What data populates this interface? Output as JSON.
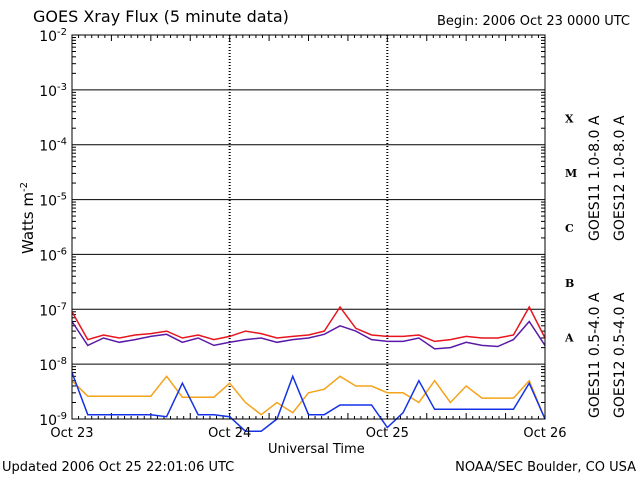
{
  "header": {
    "title": "GOES Xray Flux (5 minute data)",
    "begin": "Begin:  2006 Oct 23 0000 UTC"
  },
  "footer": {
    "updated": "Updated 2006 Oct 25 22:01:06 UTC",
    "credit": "NOAA/SEC Boulder, CO USA"
  },
  "colors": {
    "goes11_long": "#5a1aa8",
    "goes12_long": "#e8141e",
    "goes11_short": "#f5a31a",
    "goes12_short": "#1432e6"
  },
  "chart_data": {
    "type": "line",
    "title": "GOES Xray Flux (5 minute data)",
    "xlabel": "Universal Time",
    "ylabel": "Watts m",
    "ylabel_sup": "-2",
    "yscale": "log",
    "ylim": [
      1e-09,
      0.01
    ],
    "xlim": [
      "Oct 23",
      "Oct 26"
    ],
    "x_ticks": [
      "Oct 23",
      "Oct 24",
      "Oct 25",
      "Oct 26"
    ],
    "y_ticks": [
      {
        "base": "10",
        "exp": "-9"
      },
      {
        "base": "10",
        "exp": "-8"
      },
      {
        "base": "10",
        "exp": "-7"
      },
      {
        "base": "10",
        "exp": "-6"
      },
      {
        "base": "10",
        "exp": "-5"
      },
      {
        "base": "10",
        "exp": "-4"
      },
      {
        "base": "10",
        "exp": "-3"
      },
      {
        "base": "10",
        "exp": "-2"
      }
    ],
    "flare_classes": [
      "A",
      "B",
      "C",
      "M",
      "X"
    ],
    "grid": true,
    "x_days": [
      0,
      0.1,
      0.2,
      0.3,
      0.4,
      0.5,
      0.6,
      0.7,
      0.8,
      0.9,
      1.0,
      1.1,
      1.2,
      1.3,
      1.4,
      1.5,
      1.6,
      1.7,
      1.8,
      1.9,
      2.0,
      2.1,
      2.2,
      2.3,
      2.4,
      2.5,
      2.6,
      2.7,
      2.8,
      2.9,
      3.0
    ],
    "series": [
      {
        "name": "GOES11 1.0-8.0 A",
        "color_key": "goes11_long",
        "values": [
          6e-08,
          2.2e-08,
          3e-08,
          2.5e-08,
          2.8e-08,
          3.2e-08,
          3.5e-08,
          2.5e-08,
          3e-08,
          2.2e-08,
          2.5e-08,
          2.8e-08,
          3e-08,
          2.5e-08,
          2.8e-08,
          3e-08,
          3.5e-08,
          5e-08,
          4e-08,
          2.8e-08,
          2.6e-08,
          2.6e-08,
          3e-08,
          1.9e-08,
          2e-08,
          2.5e-08,
          2.2e-08,
          2.1e-08,
          2.8e-08,
          6e-08,
          2.2e-08
        ]
      },
      {
        "name": "GOES12 1.0-8.0 A",
        "color_key": "goes12_long",
        "values": [
          9e-08,
          2.8e-08,
          3.4e-08,
          3e-08,
          3.4e-08,
          3.6e-08,
          4e-08,
          3e-08,
          3.4e-08,
          2.8e-08,
          3.2e-08,
          4e-08,
          3.6e-08,
          3e-08,
          3.2e-08,
          3.4e-08,
          4e-08,
          1.1e-07,
          4.5e-08,
          3.4e-08,
          3.2e-08,
          3.2e-08,
          3.4e-08,
          2.6e-08,
          2.8e-08,
          3.2e-08,
          3e-08,
          3e-08,
          3.4e-08,
          1.1e-07,
          3e-08
        ]
      },
      {
        "name": "GOES11 0.5-4.0 A",
        "color_key": "goes11_short",
        "values": [
          5e-09,
          2.6e-09,
          2.6e-09,
          2.6e-09,
          2.6e-09,
          2.6e-09,
          6e-09,
          2.5e-09,
          2.5e-09,
          2.5e-09,
          4.5e-09,
          2e-09,
          1.2e-09,
          2e-09,
          1.3e-09,
          3e-09,
          3.5e-09,
          6e-09,
          4e-09,
          4e-09,
          3e-09,
          3e-09,
          2e-09,
          5e-09,
          2e-09,
          4e-09,
          2.4e-09,
          2.4e-09,
          2.4e-09,
          5e-09,
          1e-09
        ]
      },
      {
        "name": "GOES12 0.5-4.0 A",
        "color_key": "goes12_short",
        "values": [
          7e-09,
          1.2e-09,
          1.2e-09,
          1.2e-09,
          1.2e-09,
          1.2e-09,
          1.1e-09,
          4.5e-09,
          1.2e-09,
          1.2e-09,
          1.1e-09,
          6e-10,
          6e-10,
          1e-09,
          6e-09,
          1.2e-09,
          1.2e-09,
          1.8e-09,
          1.8e-09,
          1.8e-09,
          7e-10,
          1.3e-09,
          5e-09,
          1.5e-09,
          1.5e-09,
          1.5e-09,
          1.5e-09,
          1.5e-09,
          1.5e-09,
          4.5e-09,
          1e-09
        ]
      }
    ]
  }
}
